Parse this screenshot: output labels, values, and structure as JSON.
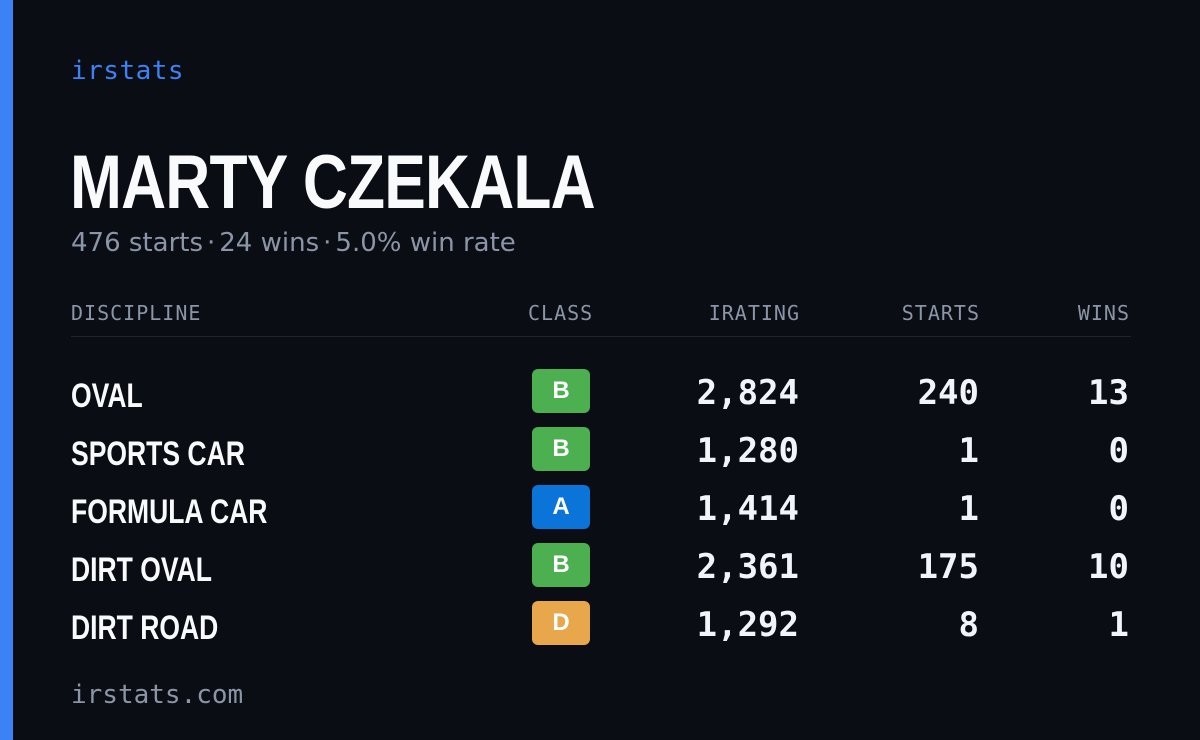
{
  "brand": "irstats",
  "driver": {
    "name": "MARTY CZEKALA",
    "starts": "476 starts",
    "wins": "24 wins",
    "win_rate": "5.0% win rate",
    "separator": "·"
  },
  "table": {
    "headers": {
      "discipline": "DISCIPLINE",
      "class": "CLASS",
      "irating": "IRATING",
      "starts": "STARTS",
      "wins": "WINS"
    },
    "rows": [
      {
        "discipline": "OVAL",
        "class": "B",
        "class_color": "#4caf50",
        "irating": "2,824",
        "starts": "240",
        "wins": "13"
      },
      {
        "discipline": "SPORTS CAR",
        "class": "B",
        "class_color": "#4caf50",
        "irating": "1,280",
        "starts": "1",
        "wins": "0"
      },
      {
        "discipline": "FORMULA CAR",
        "class": "A",
        "class_color": "#0b74d8",
        "irating": "1,414",
        "starts": "1",
        "wins": "0"
      },
      {
        "discipline": "DIRT OVAL",
        "class": "B",
        "class_color": "#4caf50",
        "irating": "2,361",
        "starts": "175",
        "wins": "10"
      },
      {
        "discipline": "DIRT ROAD",
        "class": "D",
        "class_color": "#e8a74a",
        "irating": "1,292",
        "starts": "8",
        "wins": "1"
      }
    ]
  },
  "footer": "irstats.com",
  "colors": {
    "background": "#0a0d14",
    "accent": "#3b82f6",
    "text_primary": "#f8fafc",
    "text_muted": "#8b95a7"
  }
}
